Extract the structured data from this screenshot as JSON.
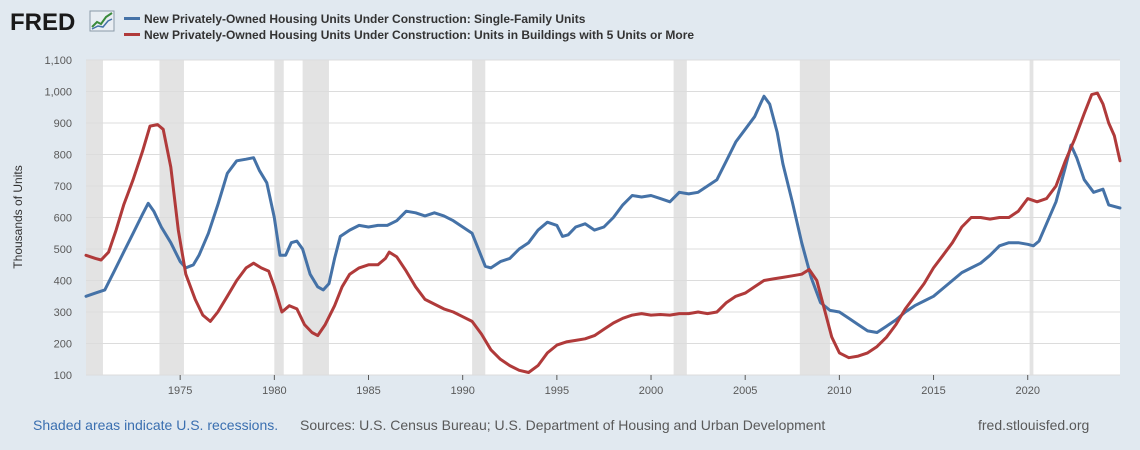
{
  "logo": {
    "text": "FRED",
    "icon": "chart-line-icon"
  },
  "footer": {
    "recessions": "Shaded areas indicate U.S. recessions.",
    "sources": "Sources: U.S. Census Bureau; U.S. Department of Housing and Urban Development",
    "url": "fred.stlouisfed.org"
  },
  "chart_data": {
    "type": "line",
    "title": "",
    "xlabel": "",
    "ylabel": "Thousands of Units",
    "xlim": [
      1970.0,
      2024.9
    ],
    "ylim": [
      100,
      1100
    ],
    "yticks": [
      100,
      200,
      300,
      400,
      500,
      600,
      700,
      800,
      900,
      1000,
      1100
    ],
    "ytick_labels": [
      "100",
      "200",
      "300",
      "400",
      "500",
      "600",
      "700",
      "800",
      "900",
      "1,000",
      "1,100"
    ],
    "xticks": [
      1975,
      1980,
      1985,
      1990,
      1995,
      2000,
      2005,
      2010,
      2015,
      2020
    ],
    "grid": true,
    "legend": "top-left",
    "recessions": [
      [
        1969.9,
        1970.9
      ],
      [
        1973.9,
        1975.2
      ],
      [
        1980.0,
        1980.5
      ],
      [
        1981.5,
        1982.9
      ],
      [
        1990.5,
        1991.2
      ],
      [
        2001.2,
        2001.9
      ],
      [
        2007.9,
        2009.5
      ],
      [
        2020.1,
        2020.3
      ]
    ],
    "series": [
      {
        "name": "New Privately-Owned Housing Units Under Construction: Single-Family Units",
        "color": "#4572a7",
        "points": [
          [
            1970.0,
            350
          ],
          [
            1970.5,
            360
          ],
          [
            1971.0,
            370
          ],
          [
            1971.5,
            430
          ],
          [
            1972.0,
            490
          ],
          [
            1972.5,
            550
          ],
          [
            1973.0,
            610
          ],
          [
            1973.3,
            645
          ],
          [
            1973.6,
            620
          ],
          [
            1974.0,
            570
          ],
          [
            1974.5,
            520
          ],
          [
            1975.0,
            460
          ],
          [
            1975.3,
            440
          ],
          [
            1975.7,
            450
          ],
          [
            1976.0,
            480
          ],
          [
            1976.5,
            550
          ],
          [
            1977.0,
            640
          ],
          [
            1977.5,
            740
          ],
          [
            1978.0,
            780
          ],
          [
            1978.5,
            785
          ],
          [
            1978.9,
            790
          ],
          [
            1979.2,
            750
          ],
          [
            1979.6,
            710
          ],
          [
            1980.0,
            600
          ],
          [
            1980.3,
            480
          ],
          [
            1980.6,
            480
          ],
          [
            1980.9,
            520
          ],
          [
            1981.2,
            525
          ],
          [
            1981.5,
            500
          ],
          [
            1981.9,
            420
          ],
          [
            1982.3,
            380
          ],
          [
            1982.6,
            370
          ],
          [
            1982.9,
            390
          ],
          [
            1983.2,
            470
          ],
          [
            1983.5,
            540
          ],
          [
            1984.0,
            560
          ],
          [
            1984.5,
            575
          ],
          [
            1985.0,
            570
          ],
          [
            1985.5,
            575
          ],
          [
            1986.0,
            575
          ],
          [
            1986.5,
            590
          ],
          [
            1987.0,
            620
          ],
          [
            1987.5,
            615
          ],
          [
            1988.0,
            605
          ],
          [
            1988.5,
            615
          ],
          [
            1989.0,
            605
          ],
          [
            1989.5,
            590
          ],
          [
            1990.0,
            570
          ],
          [
            1990.5,
            550
          ],
          [
            1990.9,
            490
          ],
          [
            1991.2,
            445
          ],
          [
            1991.5,
            440
          ],
          [
            1992.0,
            460
          ],
          [
            1992.5,
            470
          ],
          [
            1993.0,
            500
          ],
          [
            1993.5,
            520
          ],
          [
            1994.0,
            560
          ],
          [
            1994.5,
            585
          ],
          [
            1995.0,
            575
          ],
          [
            1995.3,
            540
          ],
          [
            1995.6,
            545
          ],
          [
            1996.0,
            570
          ],
          [
            1996.5,
            580
          ],
          [
            1997.0,
            560
          ],
          [
            1997.5,
            570
          ],
          [
            1998.0,
            600
          ],
          [
            1998.5,
            640
          ],
          [
            1999.0,
            670
          ],
          [
            1999.5,
            665
          ],
          [
            2000.0,
            670
          ],
          [
            2000.5,
            660
          ],
          [
            2001.0,
            650
          ],
          [
            2001.5,
            680
          ],
          [
            2002.0,
            675
          ],
          [
            2002.5,
            680
          ],
          [
            2003.0,
            700
          ],
          [
            2003.5,
            720
          ],
          [
            2004.0,
            780
          ],
          [
            2004.5,
            840
          ],
          [
            2005.0,
            880
          ],
          [
            2005.5,
            920
          ],
          [
            2005.8,
            960
          ],
          [
            2006.0,
            985
          ],
          [
            2006.3,
            960
          ],
          [
            2006.7,
            870
          ],
          [
            2007.0,
            770
          ],
          [
            2007.5,
            650
          ],
          [
            2008.0,
            520
          ],
          [
            2008.5,
            410
          ],
          [
            2009.0,
            330
          ],
          [
            2009.5,
            305
          ],
          [
            2010.0,
            300
          ],
          [
            2010.5,
            280
          ],
          [
            2011.0,
            260
          ],
          [
            2011.5,
            240
          ],
          [
            2012.0,
            235
          ],
          [
            2012.5,
            255
          ],
          [
            2013.0,
            275
          ],
          [
            2013.5,
            300
          ],
          [
            2014.0,
            320
          ],
          [
            2014.5,
            335
          ],
          [
            2015.0,
            350
          ],
          [
            2015.5,
            375
          ],
          [
            2016.0,
            400
          ],
          [
            2016.5,
            425
          ],
          [
            2017.0,
            440
          ],
          [
            2017.5,
            455
          ],
          [
            2018.0,
            480
          ],
          [
            2018.5,
            510
          ],
          [
            2019.0,
            520
          ],
          [
            2019.5,
            520
          ],
          [
            2020.0,
            515
          ],
          [
            2020.3,
            510
          ],
          [
            2020.6,
            525
          ],
          [
            2021.0,
            580
          ],
          [
            2021.5,
            650
          ],
          [
            2022.0,
            760
          ],
          [
            2022.3,
            830
          ],
          [
            2022.6,
            790
          ],
          [
            2023.0,
            720
          ],
          [
            2023.5,
            680
          ],
          [
            2024.0,
            690
          ],
          [
            2024.3,
            640
          ],
          [
            2024.9,
            630
          ]
        ]
      },
      {
        "name": "New Privately-Owned Housing Units Under Construction: Units in Buildings with 5 Units or More",
        "color": "#b03a3a",
        "points": [
          [
            1970.0,
            480
          ],
          [
            1970.5,
            470
          ],
          [
            1970.8,
            465
          ],
          [
            1971.2,
            490
          ],
          [
            1971.6,
            560
          ],
          [
            1972.0,
            640
          ],
          [
            1972.5,
            720
          ],
          [
            1973.0,
            810
          ],
          [
            1973.4,
            890
          ],
          [
            1973.8,
            895
          ],
          [
            1974.1,
            880
          ],
          [
            1974.5,
            760
          ],
          [
            1974.9,
            560
          ],
          [
            1975.3,
            420
          ],
          [
            1975.8,
            340
          ],
          [
            1976.2,
            290
          ],
          [
            1976.6,
            270
          ],
          [
            1977.0,
            300
          ],
          [
            1977.5,
            350
          ],
          [
            1978.0,
            400
          ],
          [
            1978.5,
            440
          ],
          [
            1978.9,
            455
          ],
          [
            1979.3,
            440
          ],
          [
            1979.7,
            430
          ],
          [
            1980.0,
            380
          ],
          [
            1980.4,
            300
          ],
          [
            1980.8,
            320
          ],
          [
            1981.2,
            310
          ],
          [
            1981.6,
            260
          ],
          [
            1982.0,
            235
          ],
          [
            1982.3,
            225
          ],
          [
            1982.7,
            260
          ],
          [
            1983.2,
            320
          ],
          [
            1983.6,
            380
          ],
          [
            1984.0,
            420
          ],
          [
            1984.5,
            440
          ],
          [
            1985.0,
            450
          ],
          [
            1985.5,
            450
          ],
          [
            1985.9,
            470
          ],
          [
            1986.1,
            490
          ],
          [
            1986.5,
            475
          ],
          [
            1987.0,
            430
          ],
          [
            1987.5,
            380
          ],
          [
            1988.0,
            340
          ],
          [
            1988.5,
            325
          ],
          [
            1989.0,
            310
          ],
          [
            1989.5,
            300
          ],
          [
            1990.0,
            285
          ],
          [
            1990.5,
            270
          ],
          [
            1991.0,
            230
          ],
          [
            1991.5,
            180
          ],
          [
            1992.0,
            150
          ],
          [
            1992.5,
            130
          ],
          [
            1993.0,
            115
          ],
          [
            1993.5,
            108
          ],
          [
            1994.0,
            130
          ],
          [
            1994.5,
            170
          ],
          [
            1995.0,
            195
          ],
          [
            1995.5,
            205
          ],
          [
            1996.0,
            210
          ],
          [
            1996.5,
            215
          ],
          [
            1997.0,
            225
          ],
          [
            1997.5,
            245
          ],
          [
            1998.0,
            265
          ],
          [
            1998.5,
            280
          ],
          [
            1999.0,
            290
          ],
          [
            1999.5,
            295
          ],
          [
            2000.0,
            290
          ],
          [
            2000.5,
            292
          ],
          [
            2001.0,
            290
          ],
          [
            2001.5,
            295
          ],
          [
            2002.0,
            295
          ],
          [
            2002.5,
            300
          ],
          [
            2003.0,
            295
          ],
          [
            2003.5,
            300
          ],
          [
            2004.0,
            330
          ],
          [
            2004.5,
            350
          ],
          [
            2005.0,
            360
          ],
          [
            2005.5,
            380
          ],
          [
            2006.0,
            400
          ],
          [
            2006.5,
            405
          ],
          [
            2007.0,
            410
          ],
          [
            2007.5,
            415
          ],
          [
            2008.0,
            420
          ],
          [
            2008.4,
            435
          ],
          [
            2008.8,
            400
          ],
          [
            2009.2,
            310
          ],
          [
            2009.6,
            220
          ],
          [
            2010.0,
            170
          ],
          [
            2010.5,
            155
          ],
          [
            2011.0,
            160
          ],
          [
            2011.5,
            170
          ],
          [
            2012.0,
            190
          ],
          [
            2012.5,
            220
          ],
          [
            2013.0,
            260
          ],
          [
            2013.5,
            310
          ],
          [
            2014.0,
            350
          ],
          [
            2014.5,
            390
          ],
          [
            2015.0,
            440
          ],
          [
            2015.5,
            480
          ],
          [
            2016.0,
            520
          ],
          [
            2016.5,
            570
          ],
          [
            2017.0,
            600
          ],
          [
            2017.5,
            600
          ],
          [
            2018.0,
            595
          ],
          [
            2018.5,
            600
          ],
          [
            2019.0,
            600
          ],
          [
            2019.5,
            620
          ],
          [
            2020.0,
            660
          ],
          [
            2020.5,
            650
          ],
          [
            2021.0,
            660
          ],
          [
            2021.5,
            700
          ],
          [
            2022.0,
            780
          ],
          [
            2022.5,
            850
          ],
          [
            2023.0,
            930
          ],
          [
            2023.4,
            990
          ],
          [
            2023.7,
            995
          ],
          [
            2024.0,
            960
          ],
          [
            2024.3,
            900
          ],
          [
            2024.6,
            860
          ],
          [
            2024.9,
            780
          ]
        ]
      }
    ]
  }
}
